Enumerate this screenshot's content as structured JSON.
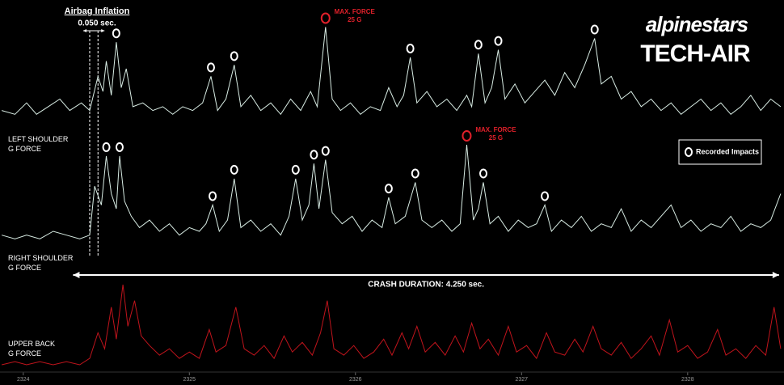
{
  "chart_data": {
    "type": "line",
    "xlim": [
      2323.86,
      2328.58
    ],
    "xticks": [
      2324,
      2325,
      2326,
      2327,
      2328
    ],
    "legend_label": "Recorded Impacts",
    "logo": {
      "brand": "alpinestars",
      "product": "TECH-AIR"
    },
    "airbag": {
      "label": "Airbag Inflation",
      "duration_label": "0.050 sec.",
      "x": [
        2324.4,
        2324.45
      ]
    },
    "crash": {
      "label": "CRASH DURATION: 4.250 sec.",
      "x": [
        2324.3,
        2328.55
      ]
    },
    "series": [
      {
        "name": "LEFT SHOULDER\nG FORCE",
        "color": "#d8ece4",
        "ylim": [
          -2,
          30
        ],
        "max_label": "MAX. FORCE\n25 G",
        "x": [
          2323.87,
          2323.95,
          2324.02,
          2324.08,
          2324.15,
          2324.22,
          2324.28,
          2324.35,
          2324.4,
          2324.45,
          2324.48,
          2324.5,
          2324.53,
          2324.56,
          2324.59,
          2324.62,
          2324.66,
          2324.72,
          2324.78,
          2324.84,
          2324.9,
          2324.96,
          2325.02,
          2325.08,
          2325.13,
          2325.17,
          2325.22,
          2325.27,
          2325.31,
          2325.37,
          2325.43,
          2325.49,
          2325.55,
          2325.61,
          2325.67,
          2325.73,
          2325.77,
          2325.82,
          2325.86,
          2325.91,
          2325.97,
          2326.03,
          2326.09,
          2326.15,
          2326.2,
          2326.25,
          2326.29,
          2326.33,
          2326.37,
          2326.43,
          2326.49,
          2326.55,
          2326.61,
          2326.67,
          2326.7,
          2326.74,
          2326.78,
          2326.82,
          2326.86,
          2326.9,
          2326.96,
          2327.02,
          2327.08,
          2327.14,
          2327.2,
          2327.26,
          2327.32,
          2327.38,
          2327.44,
          2327.48,
          2327.54,
          2327.6,
          2327.66,
          2327.72,
          2327.78,
          2327.84,
          2327.9,
          2327.96,
          2328.02,
          2328.08,
          2328.14,
          2328.2,
          2328.26,
          2328.32,
          2328.38,
          2328.44,
          2328.5,
          2328.56
        ],
        "values": [
          3,
          2,
          5,
          2,
          4,
          6,
          3,
          5,
          3,
          12,
          8,
          16,
          7,
          21,
          9,
          14,
          4,
          5,
          3,
          4,
          2,
          4,
          3,
          5,
          12,
          3,
          6,
          15,
          4,
          7,
          3,
          5,
          2,
          6,
          3,
          8,
          4,
          25,
          6,
          3,
          5,
          2,
          4,
          3,
          9,
          4,
          7,
          17,
          5,
          8,
          4,
          6,
          3,
          7,
          4,
          18,
          5,
          9,
          19,
          6,
          10,
          5,
          8,
          11,
          7,
          13,
          9,
          15,
          22,
          10,
          12,
          6,
          8,
          4,
          6,
          3,
          5,
          2,
          4,
          6,
          3,
          5,
          2,
          4,
          7,
          3,
          6,
          4
        ],
        "impact_x": [
          2324.56,
          2325.13,
          2325.27,
          2325.82,
          2326.33,
          2326.74,
          2326.86,
          2327.44
        ],
        "impact_values": [
          21,
          12,
          15,
          25,
          17,
          18,
          19,
          22
        ]
      },
      {
        "name": "RIGHT  SHOULDER\nG FORCE",
        "color": "#d8ece4",
        "ylim": [
          -1,
          28
        ],
        "max_label": "MAX. FORCE\n25 G",
        "x": [
          2323.87,
          2323.95,
          2324.02,
          2324.1,
          2324.18,
          2324.26,
          2324.34,
          2324.4,
          2324.43,
          2324.47,
          2324.5,
          2324.53,
          2324.56,
          2324.58,
          2324.61,
          2324.65,
          2324.7,
          2324.76,
          2324.82,
          2324.88,
          2324.94,
          2325.0,
          2325.06,
          2325.1,
          2325.14,
          2325.18,
          2325.23,
          2325.27,
          2325.31,
          2325.37,
          2325.43,
          2325.49,
          2325.55,
          2325.6,
          2325.64,
          2325.68,
          2325.72,
          2325.75,
          2325.78,
          2325.82,
          2325.86,
          2325.92,
          2325.98,
          2326.04,
          2326.1,
          2326.16,
          2326.2,
          2326.24,
          2326.3,
          2326.36,
          2326.4,
          2326.46,
          2326.52,
          2326.58,
          2326.63,
          2326.67,
          2326.71,
          2326.74,
          2326.77,
          2326.81,
          2326.86,
          2326.92,
          2326.98,
          2327.04,
          2327.09,
          2327.14,
          2327.18,
          2327.24,
          2327.3,
          2327.36,
          2327.42,
          2327.48,
          2327.54,
          2327.6,
          2327.66,
          2327.72,
          2327.78,
          2327.84,
          2327.9,
          2327.96,
          2328.02,
          2328.08,
          2328.14,
          2328.2,
          2328.26,
          2328.32,
          2328.38,
          2328.44,
          2328.5,
          2328.56
        ],
        "values": [
          1,
          0,
          1,
          0,
          2,
          1,
          0,
          1,
          14,
          9,
          22,
          12,
          8,
          22,
          10,
          6,
          3,
          5,
          2,
          4,
          1,
          3,
          2,
          4,
          9,
          2,
          5,
          16,
          3,
          5,
          2,
          4,
          1,
          6,
          16,
          5,
          9,
          20,
          8,
          21,
          7,
          4,
          6,
          2,
          5,
          3,
          11,
          4,
          6,
          15,
          5,
          3,
          5,
          2,
          4,
          25,
          5,
          8,
          15,
          4,
          6,
          2,
          5,
          3,
          4,
          9,
          2,
          5,
          3,
          6,
          2,
          4,
          3,
          8,
          2,
          5,
          3,
          6,
          9,
          3,
          5,
          2,
          4,
          3,
          6,
          2,
          4,
          3,
          5,
          12
        ],
        "impact_x": [
          2324.5,
          2324.58,
          2325.14,
          2325.27,
          2325.64,
          2325.75,
          2325.82,
          2326.2,
          2326.36,
          2326.67,
          2326.77,
          2327.14
        ],
        "impact_values": [
          22,
          22,
          9,
          16,
          16,
          20,
          21,
          11,
          15,
          25,
          15,
          9
        ]
      },
      {
        "name": "UPPER BACK\nG FORCE",
        "color": "#c0141c",
        "ylim": [
          -1,
          28
        ],
        "x": [
          2323.87,
          2323.95,
          2324.02,
          2324.1,
          2324.18,
          2324.26,
          2324.34,
          2324.4,
          2324.45,
          2324.49,
          2324.53,
          2324.56,
          2324.6,
          2324.63,
          2324.67,
          2324.71,
          2324.76,
          2324.82,
          2324.88,
          2324.94,
          2325.0,
          2325.06,
          2325.12,
          2325.16,
          2325.22,
          2325.28,
          2325.33,
          2325.39,
          2325.45,
          2325.51,
          2325.57,
          2325.62,
          2325.68,
          2325.74,
          2325.79,
          2325.83,
          2325.87,
          2325.93,
          2325.99,
          2326.05,
          2326.11,
          2326.17,
          2326.22,
          2326.28,
          2326.32,
          2326.37,
          2326.42,
          2326.48,
          2326.54,
          2326.6,
          2326.65,
          2326.7,
          2326.75,
          2326.8,
          2326.86,
          2326.92,
          2326.97,
          2327.03,
          2327.09,
          2327.15,
          2327.2,
          2327.26,
          2327.32,
          2327.37,
          2327.43,
          2327.48,
          2327.54,
          2327.6,
          2327.66,
          2327.72,
          2327.78,
          2327.83,
          2327.89,
          2327.94,
          2328.0,
          2328.06,
          2328.12,
          2328.18,
          2328.23,
          2328.29,
          2328.35,
          2328.41,
          2328.47,
          2328.52,
          2328.56
        ],
        "values": [
          0,
          1,
          0,
          1,
          0,
          1,
          0,
          2,
          10,
          5,
          18,
          8,
          25,
          12,
          20,
          9,
          6,
          3,
          5,
          2,
          4,
          2,
          11,
          4,
          6,
          18,
          5,
          3,
          6,
          2,
          9,
          4,
          7,
          3,
          10,
          20,
          5,
          3,
          6,
          2,
          4,
          8,
          3,
          10,
          5,
          12,
          4,
          7,
          3,
          9,
          4,
          13,
          5,
          8,
          3,
          12,
          4,
          6,
          2,
          10,
          4,
          3,
          8,
          4,
          12,
          5,
          3,
          7,
          2,
          5,
          9,
          3,
          14,
          4,
          6,
          2,
          4,
          11,
          3,
          5,
          2,
          6,
          3,
          18,
          5
        ]
      }
    ]
  }
}
